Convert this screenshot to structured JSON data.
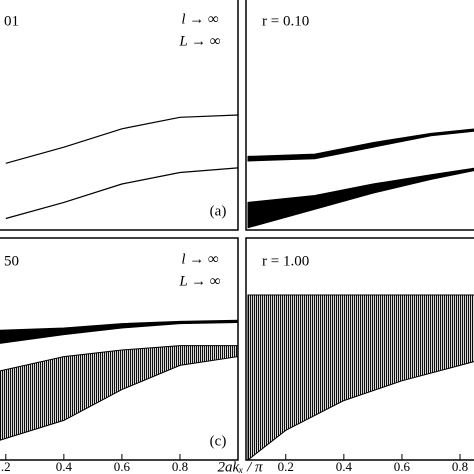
{
  "chart_data": [
    {
      "type": "band",
      "title": "01",
      "annotations": [
        "l → ∞",
        "L → ∞",
        "(a)"
      ],
      "xlim": [
        0.18,
        1.0
      ],
      "ylim": [
        0,
        1
      ],
      "x": [
        0.2,
        0.4,
        0.6,
        0.8,
        1.0
      ],
      "series": [
        {
          "values": [
            0.29,
            0.36,
            0.44,
            0.49,
            0.5
          ]
        },
        {
          "values": [
            0.05,
            0.12,
            0.2,
            0.25,
            0.27
          ]
        }
      ]
    },
    {
      "type": "band",
      "title": "r = 0.10",
      "xlim": [
        0.07,
        0.855
      ],
      "ylim": [
        0,
        1
      ],
      "x": [
        0.07,
        0.3,
        0.5,
        0.7,
        0.855
      ],
      "bands": [
        {
          "style": "solid",
          "lower": [
            0.3,
            0.31,
            0.36,
            0.41,
            0.43
          ],
          "upper": [
            0.32,
            0.33,
            0.38,
            0.42,
            0.44
          ]
        },
        {
          "style": "solid",
          "lower": [
            0.01,
            0.09,
            0.16,
            0.22,
            0.26
          ],
          "upper": [
            0.12,
            0.15,
            0.2,
            0.24,
            0.27
          ]
        }
      ]
    },
    {
      "type": "band",
      "title": "50",
      "annotations": [
        "l → ∞",
        "L → ∞",
        "(c)"
      ],
      "xlabel": "2akₓ / π",
      "xlim": [
        0.18,
        1.0
      ],
      "ylim": [
        0,
        1
      ],
      "xticks": [
        {
          "value": 0.2,
          "label": ".2"
        },
        0.4,
        0.6,
        0.8
      ],
      "x": [
        0.18,
        0.4,
        0.6,
        0.8,
        1.0
      ],
      "bands": [
        {
          "style": "solid",
          "lower": [
            0.53,
            0.57,
            0.6,
            0.62,
            0.625
          ],
          "upper": [
            0.59,
            0.6,
            0.62,
            0.63,
            0.635
          ]
        },
        {
          "style": "hatch",
          "lower": [
            0.09,
            0.18,
            0.32,
            0.43,
            0.47
          ],
          "upper": [
            0.405,
            0.47,
            0.5,
            0.52,
            0.52
          ]
        }
      ]
    },
    {
      "type": "band",
      "title": "r = 1.00",
      "xlim": [
        0.07,
        0.855
      ],
      "ylim": [
        0,
        1
      ],
      "xticks": [
        0.2,
        0.4,
        0.6,
        0.8
      ],
      "x": [
        0.07,
        0.2,
        0.4,
        0.6,
        0.8,
        0.855
      ],
      "bands": [
        {
          "style": "hatch",
          "lower": [
            0,
            0.135,
            0.27,
            0.36,
            0.43,
            0.45
          ],
          "upper": [
            0.75,
            0.75,
            0.75,
            0.75,
            0.75,
            0.75
          ]
        }
      ]
    }
  ]
}
